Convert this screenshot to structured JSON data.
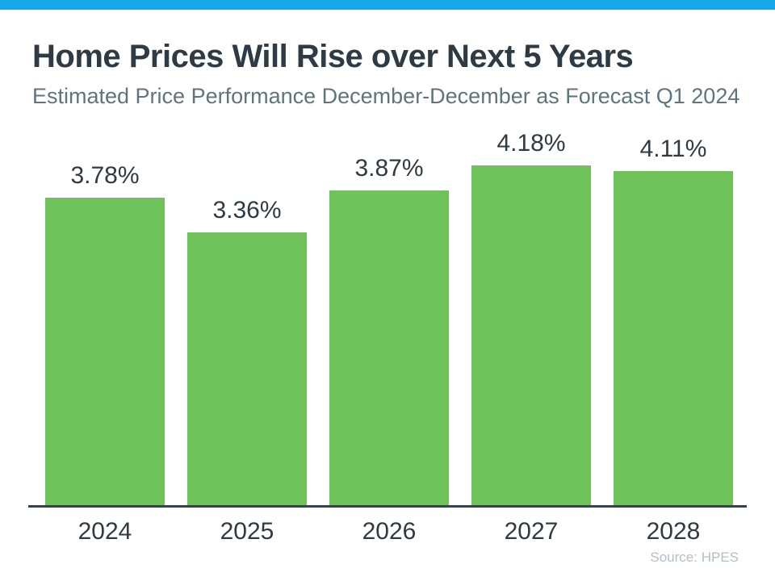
{
  "page": {
    "top_bar_color": "#16a7e9",
    "background_color": "#ffffff"
  },
  "header": {
    "title": "Home Prices Will Rise over Next 5 Years",
    "subtitle": "Estimated Price Performance December-December as Forecast Q1 2024"
  },
  "chart_data": {
    "type": "bar",
    "categories": [
      "2024",
      "2025",
      "2026",
      "2027",
      "2028"
    ],
    "values": [
      3.78,
      3.36,
      3.87,
      4.18,
      4.11
    ],
    "value_labels": [
      "3.78%",
      "3.36%",
      "3.87%",
      "4.18%",
      "4.11%"
    ],
    "title": "Home Prices Will Rise over Next 5 Years",
    "subtitle": "Estimated Price Performance December-December as Forecast Q1 2024",
    "xlabel": "",
    "ylabel": "",
    "ylim": [
      0,
      4.5
    ],
    "grid": false,
    "legend": false,
    "bar_color": "#70c25b",
    "value_label_color": "#2e3b44",
    "category_label_color": "#2e3b44",
    "axis_line_color": "#38424b"
  },
  "footer": {
    "source": "Source: HPES"
  }
}
